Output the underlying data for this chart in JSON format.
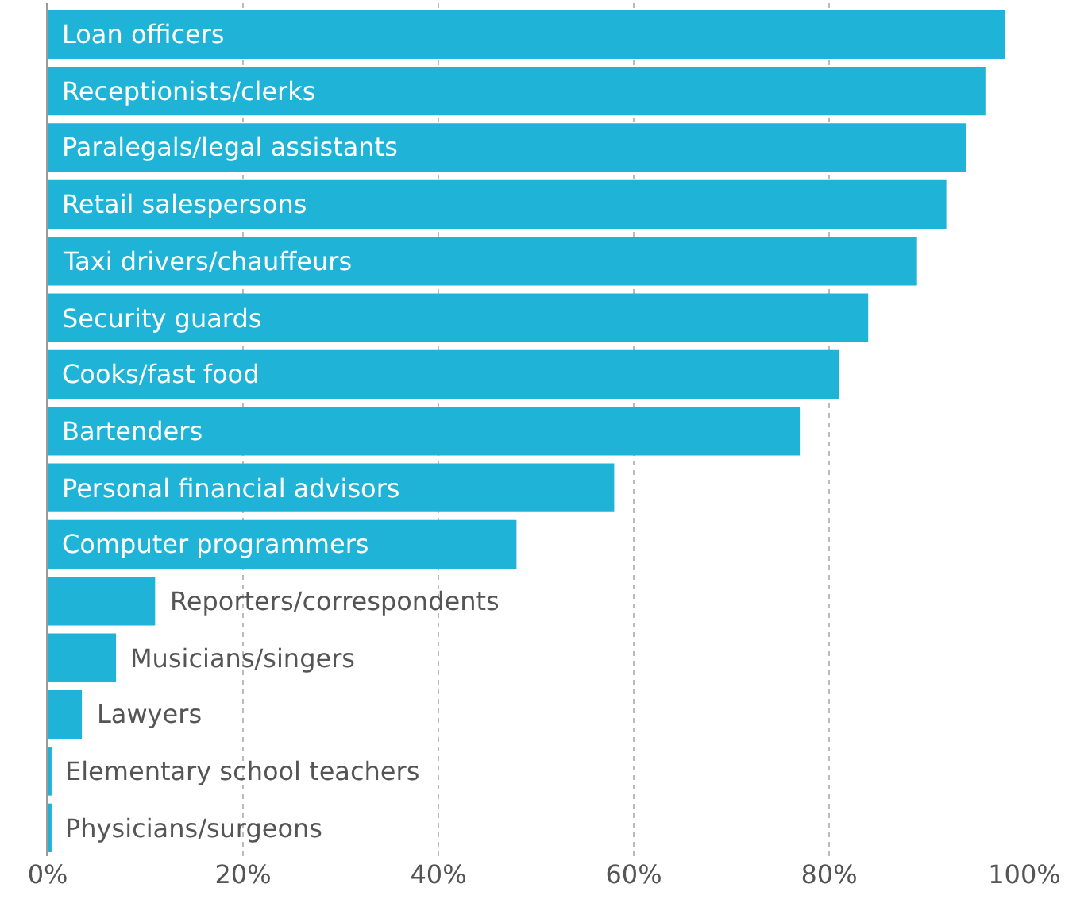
{
  "chart_data": {
    "type": "bar",
    "orientation": "horizontal",
    "categories": [
      "Loan officers",
      "Receptionists/clerks",
      "Paralegals/legal assistants",
      "Retail salespersons",
      "Taxi drivers/chauffeurs",
      "Security guards",
      "Cooks/fast food",
      "Bartenders",
      "Personal financial advisors",
      "Computer programmers",
      "Reporters/correspondents",
      "Musicians/singers",
      "Lawyers",
      "Elementary school teachers",
      "Physicians/surgeons"
    ],
    "values": [
      98,
      96,
      94,
      92,
      89,
      84,
      81,
      77,
      58,
      48,
      11,
      7,
      3.5,
      0.4,
      0.4
    ],
    "color": "#1fb3d8",
    "xlim": [
      0,
      100
    ],
    "xticks": [
      {
        "value": 0,
        "label": "0%"
      },
      {
        "value": 20,
        "label": "20%"
      },
      {
        "value": 40,
        "label": "40%"
      },
      {
        "value": 60,
        "label": "60%"
      },
      {
        "value": 80,
        "label": "80%"
      },
      {
        "value": 100,
        "label": "100%"
      }
    ],
    "grid": "x",
    "tick_labels": "x"
  }
}
